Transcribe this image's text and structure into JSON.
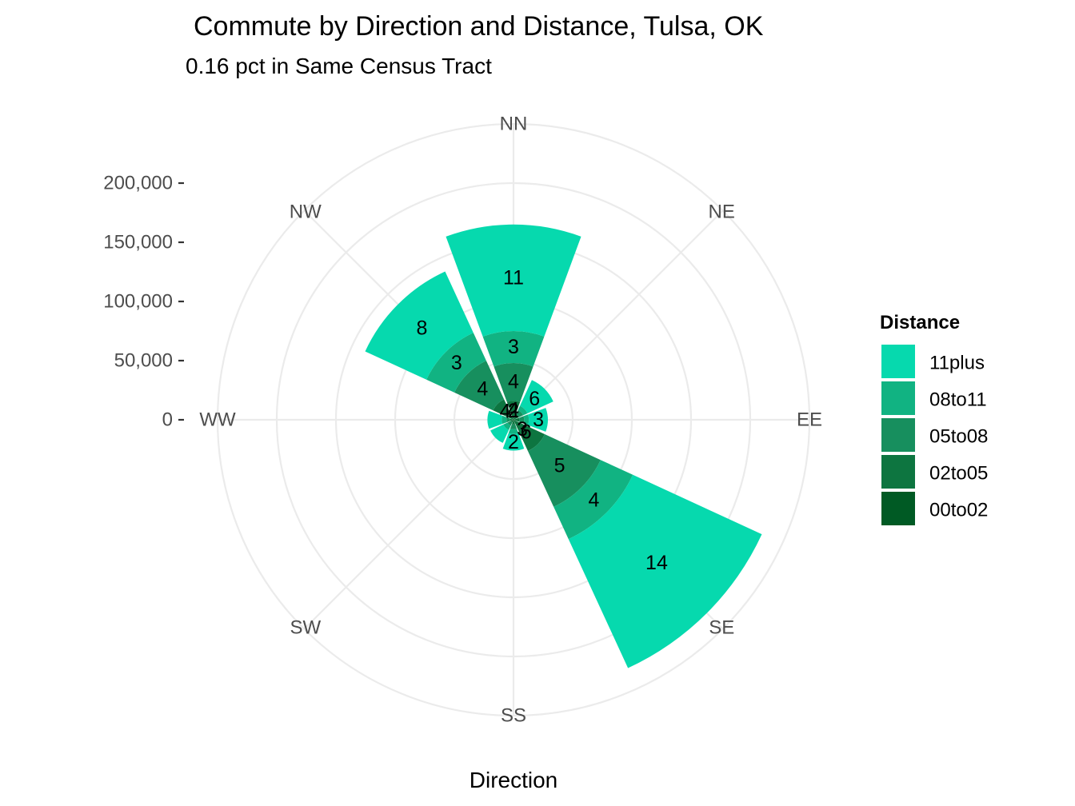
{
  "chart_data": {
    "type": "bar",
    "coord": "polar",
    "title": "Commute by Direction and Distance, Tulsa, OK",
    "subtitle": "0.16 pct in Same Census Tract",
    "xlabel": "Direction",
    "ylabel": "",
    "categories": [
      "NN",
      "NE",
      "EE",
      "SE",
      "SS",
      "SW",
      "WW",
      "NW"
    ],
    "y_ticks": [
      0,
      50000,
      100000,
      150000,
      200000
    ],
    "y_tick_labels": [
      "0",
      "50,000",
      "100,000",
      "150,000",
      "200,000"
    ],
    "ylim": [
      0,
      250000
    ],
    "grid": true,
    "series": [
      {
        "name": "00to02",
        "color": "#005a24",
        "values": [
          1000,
          1000,
          1000,
          1000,
          1000,
          1000,
          1000,
          1000
        ],
        "labels": [
          "",
          "",
          "",
          "",
          "",
          "",
          "",
          ""
        ]
      },
      {
        "name": "02to05",
        "color": "#0d7540",
        "values": [
          15000,
          4000,
          4000,
          28000,
          3000,
          1500,
          2000,
          18000
        ],
        "labels": [
          "4",
          "",
          "",
          "6",
          "",
          "",
          "",
          "4"
        ]
      },
      {
        "name": "05to08",
        "color": "#178f5e",
        "values": [
          32000,
          4000,
          4000,
          52000,
          4000,
          3000,
          3000,
          36000
        ],
        "labels": [
          "4",
          "",
          "",
          "5",
          "",
          "",
          "",
          "4"
        ]
      },
      {
        "name": "08to11",
        "color": "#11b382",
        "values": [
          27000,
          4000,
          4000,
          30000,
          4000,
          4000,
          4000,
          26000
        ],
        "labels": [
          "3",
          "",
          "",
          "4",
          "",
          "",
          "",
          "3"
        ]
      },
      {
        "name": "11plus",
        "color": "#06d9ae",
        "values": [
          90000,
          24000,
          16000,
          120000,
          14000,
          12000,
          12000,
          57000
        ],
        "labels": [
          "11",
          "6",
          "3",
          "14",
          "2",
          "",
          "",
          "8"
        ]
      }
    ],
    "center_labels": [
      "2",
      "3"
    ],
    "legend": {
      "title": "Distance",
      "position": "right",
      "entries": [
        "11plus",
        "08to11",
        "05to08",
        "02to05",
        "00to02"
      ]
    }
  }
}
